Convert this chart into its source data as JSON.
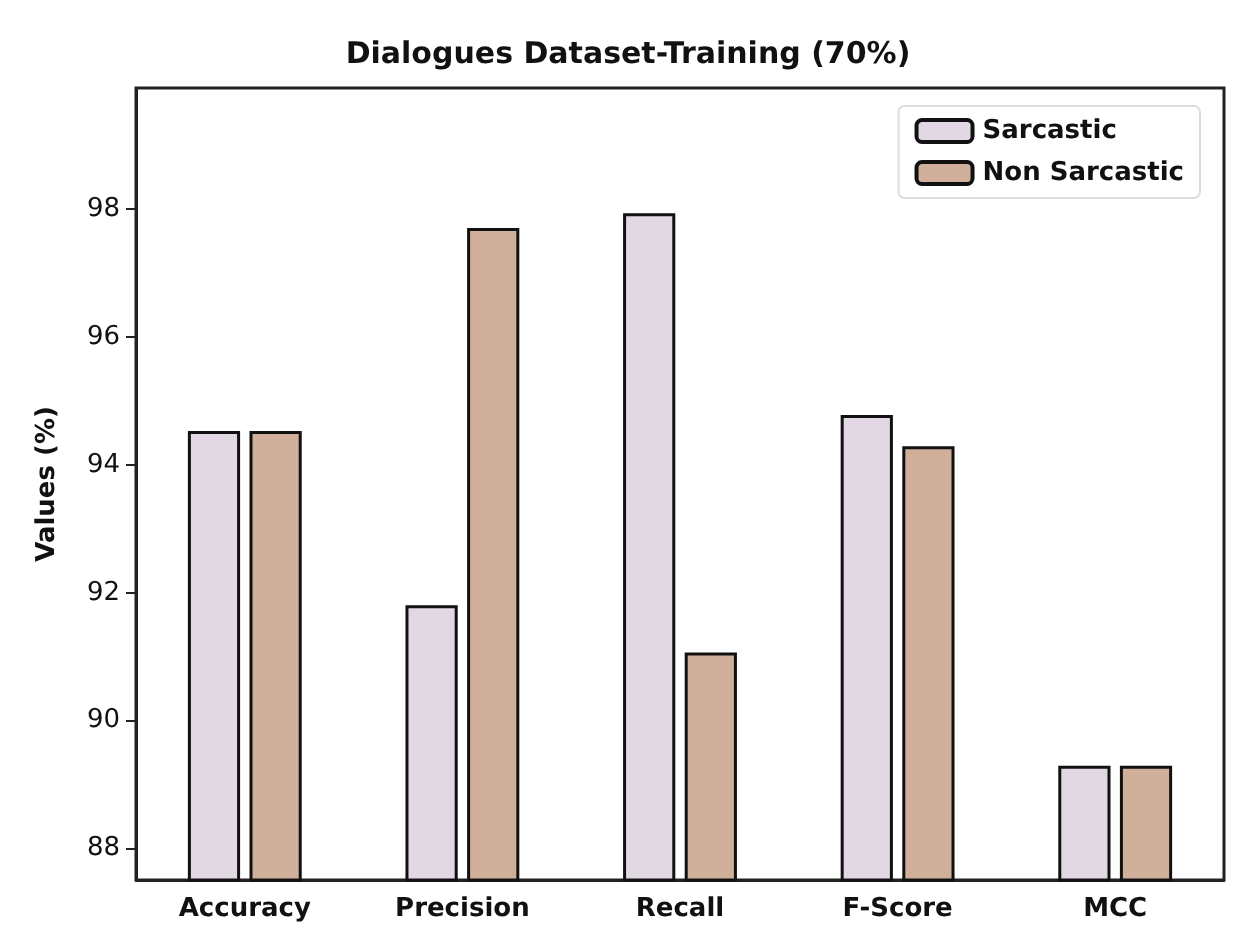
{
  "chart_data": {
    "type": "bar",
    "title": "Dialogues Dataset-Training (70%)",
    "ylabel": "Values (%)",
    "categories": [
      "Accuracy",
      "Precision",
      "Recall",
      "F-Score",
      "MCC"
    ],
    "series": [
      {
        "name": "Sarcastic",
        "color": "#e2d8e4",
        "values": [
          94.53,
          91.8,
          97.94,
          94.78,
          89.29
        ]
      },
      {
        "name": "Non Sarcastic",
        "color": "#d0b09a",
        "values": [
          94.53,
          97.71,
          91.06,
          94.29,
          89.29
        ]
      }
    ],
    "ylim": [
      87.5,
      99.9
    ],
    "yticks": [
      88,
      90,
      92,
      94,
      96,
      98
    ],
    "grid": false,
    "legend": "top right"
  }
}
